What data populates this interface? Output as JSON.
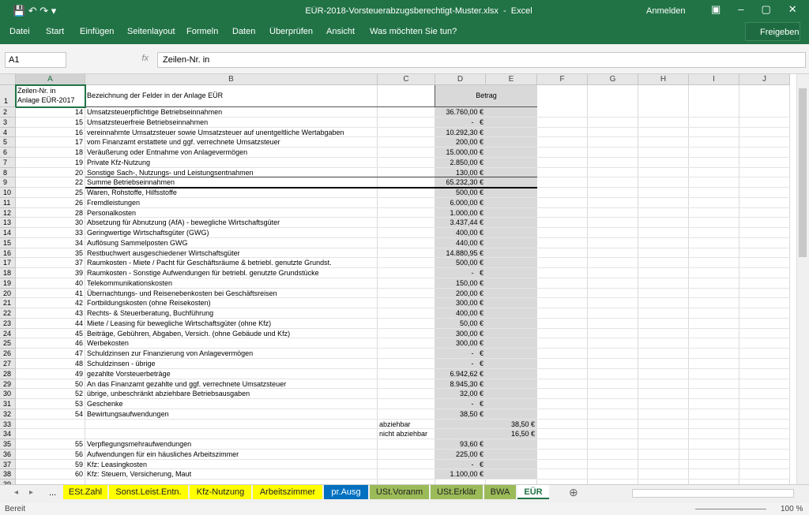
{
  "title_bar": {
    "title": "EÜR-2018-Vorsteuerabzugsberechtigt-Muster.xlsx  -  Excel",
    "sign_in": "Anmelden"
  },
  "ribbon": {
    "tabs": [
      "Datei",
      "Start",
      "Einfügen",
      "Seitenlayout",
      "Formeln",
      "Daten",
      "Überprüfen",
      "Ansicht"
    ],
    "search": "Was möchten Sie tun?",
    "share": "Freigeben"
  },
  "formula_bar": {
    "name_box": "A1",
    "fx": "fx",
    "formula": "Zeilen-Nr. in"
  },
  "sheet": {
    "columns": [
      "A",
      "B",
      "C",
      "D",
      "E",
      "F",
      "G",
      "H",
      "I",
      "J"
    ],
    "header": {
      "row": "1",
      "a": [
        "Zeilen-Nr. in",
        "Anlage EÜR-2017"
      ],
      "b": "Bezeichnung der Felder in der Anlage EÜR",
      "d": "Betrag"
    },
    "rows": [
      [
        "2",
        "14",
        "Umsatzsteuerpflichtige Betriebseinnahmen",
        null,
        "36.760,00 €",
        null
      ],
      [
        "3",
        "15",
        "Umsatzsteuerfreie Betriebseinnahmen",
        null,
        "-   €",
        null
      ],
      [
        "4",
        "16",
        "vereinnahmte Umsatzsteuer sowie Umsatzsteuer auf unentgeltliche Wertabgaben",
        null,
        "10.292,30 €",
        null
      ],
      [
        "5",
        "17",
        "vom Finanzamt erstattete und ggf. verrechnete Umsatzsteuer",
        null,
        "200,00 €",
        null
      ],
      [
        "6",
        "18",
        "Veräußerung oder Entnahme von Anlagevermögen",
        null,
        "15.000,00 €",
        null
      ],
      [
        "7",
        "19",
        "Private Kfz-Nutzung",
        null,
        "2.850,00 €",
        null
      ],
      [
        "8",
        "20",
        "Sonstige Sach-, Nutzungs- und Leistungsentnahmen",
        null,
        "130,00 €",
        null
      ],
      [
        "9",
        "22",
        "Summe Betriebseinnahmen",
        null,
        "65.232,30 €",
        null
      ],
      [
        "10",
        "25",
        "Waren, Rohstoffe, Hilfsstoffe",
        null,
        "500,00 €",
        null
      ],
      [
        "11",
        "26",
        "Fremdleistungen",
        null,
        "6.000,00 €",
        null
      ],
      [
        "12",
        "28",
        "Personalkosten",
        null,
        "1.000,00 €",
        null
      ],
      [
        "13",
        "30",
        "Absetzung für Abnutzung (AfA) - bewegliche Wirtschaftsgüter",
        null,
        "3.437,44 €",
        null
      ],
      [
        "14",
        "33",
        "Geringwertige Wirtschaftsgüter (GWG)",
        null,
        "400,00 €",
        null
      ],
      [
        "15",
        "34",
        "Auflösung Sammelposten GWG",
        null,
        "440,00 €",
        null
      ],
      [
        "16",
        "35",
        "Restbuchwert ausgeschiedener Wirtschaftsgüter",
        null,
        "14.880,95 €",
        null
      ],
      [
        "17",
        "37",
        "Raumkosten - Miete / Pacht für Geschäftsräume & betriebl. genutzte Grundst.",
        null,
        "500,00 €",
        null
      ],
      [
        "18",
        "39",
        "Raumkosten - Sonstige Aufwendungen für betriebl. genutzte Grundstücke",
        null,
        "-   €",
        null
      ],
      [
        "19",
        "40",
        "Telekommunikationskosten",
        null,
        "150,00 €",
        null
      ],
      [
        "20",
        "41",
        "Übernachtungs- und Reisenebenkosten bei Geschäftsreisen",
        null,
        "200,00 €",
        null
      ],
      [
        "21",
        "42",
        "Fortbildungskosten (ohne Reisekosten)",
        null,
        "300,00 €",
        null
      ],
      [
        "22",
        "43",
        "Rechts- & Steuerberatung, Buchführung",
        null,
        "400,00 €",
        null
      ],
      [
        "23",
        "44",
        "Miete / Leasing für bewegliche Wirtschaftsgüter (ohne Kfz)",
        null,
        "50,00 €",
        null
      ],
      [
        "24",
        "45",
        "Beiträge, Gebühren, Abgaben, Versich. (ohne Gebäude und Kfz)",
        null,
        "300,00 €",
        null
      ],
      [
        "25",
        "46",
        "Werbekosten",
        null,
        "300,00 €",
        null
      ],
      [
        "26",
        "47",
        "Schuldzinsen zur Finanzierung von Anlagevermögen",
        null,
        "-   €",
        null
      ],
      [
        "27",
        "48",
        "Schuldzinsen - übrige",
        null,
        "-   €",
        null
      ],
      [
        "28",
        "49",
        "gezahlte Vorsteuerbeträge",
        null,
        "6.942,62 €",
        null
      ],
      [
        "29",
        "50",
        "An das Finanzamt gezahlte und ggf. verrechnete Umsatzsteuer",
        null,
        "8.945,30 €",
        null
      ],
      [
        "30",
        "52",
        "übrige, unbeschränkt abziehbare Betriebsausgaben",
        null,
        "32,00 €",
        null
      ],
      [
        "31",
        "53",
        "Geschenke",
        null,
        "-   €",
        null
      ],
      [
        "32",
        "54",
        "Bewirtungsaufwendungen",
        null,
        "38,50 €",
        null
      ],
      [
        "33",
        null,
        null,
        "abziehbar",
        null,
        "38,50 €"
      ],
      [
        "34",
        null,
        null,
        "nicht abziehbar",
        null,
        "16,50 €"
      ],
      [
        "35",
        "55",
        "Verpflegungsmehraufwendungen",
        null,
        "93,60 €",
        null
      ],
      [
        "36",
        "56",
        "Aufwendungen für ein häusliches Arbeitszimmer",
        null,
        "225,00 €",
        null
      ],
      [
        "37",
        "59",
        "Kfz: Leasingkosten",
        null,
        "-   €",
        null
      ],
      [
        "38",
        "60",
        "Kfz: Steuern, Versicherung, Maut",
        null,
        "1.100,00 €",
        null
      ],
      [
        "39",
        null,
        null,
        null,
        null,
        null
      ]
    ]
  },
  "sheet_tabs": {
    "more": "...",
    "tabs": [
      {
        "name": "ESt.Zahl",
        "color": "#ffff00"
      },
      {
        "name": "Sonst.Leist.Entn.",
        "color": "#ffff00"
      },
      {
        "name": "Kfz-Nutzung",
        "color": "#ffff00"
      },
      {
        "name": "Arbeitszimmer",
        "color": "#ffff00"
      },
      {
        "name": "pr.Ausg",
        "color": "#0070c0"
      },
      {
        "name": "USt.Voranm",
        "color": "#9bbb59"
      },
      {
        "name": "USt.Erklär",
        "color": "#9bbb59"
      },
      {
        "name": "BWA",
        "color": "#9bbb59"
      },
      {
        "name": "EÜR",
        "color": "#ffffff"
      }
    ]
  },
  "status_bar": {
    "status": "Bereit",
    "zoom": "100 %"
  }
}
